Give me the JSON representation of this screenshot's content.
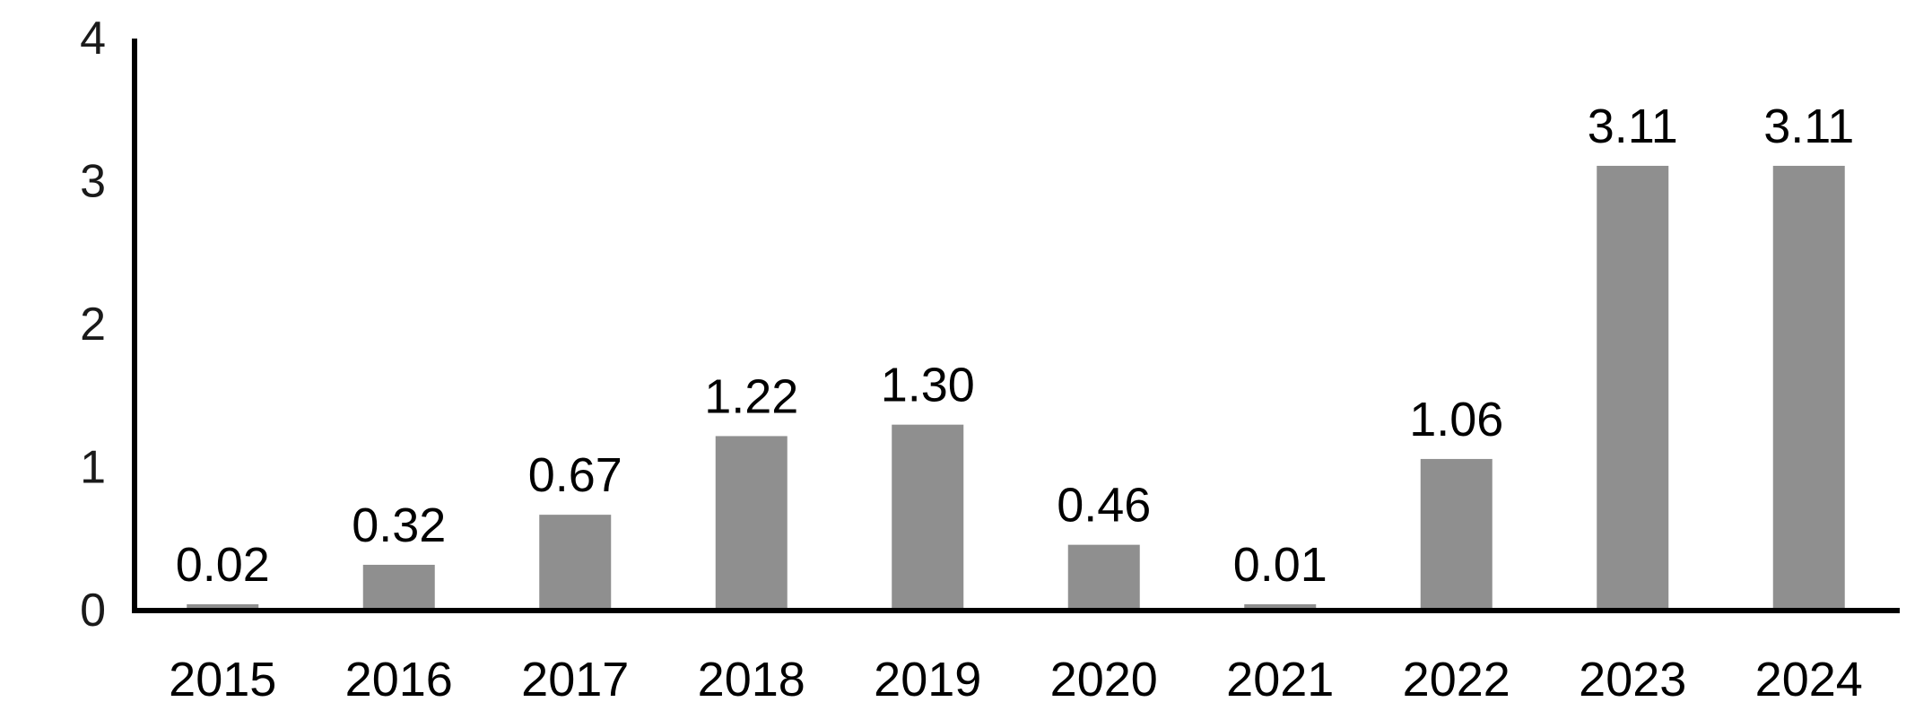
{
  "chart_data": {
    "type": "bar",
    "title": "",
    "xlabel": "",
    "ylabel": "",
    "categories": [
      "2015",
      "2016",
      "2017",
      "2018",
      "2019",
      "2020",
      "2021",
      "2022",
      "2023",
      "2024"
    ],
    "values": [
      0.02,
      0.32,
      0.67,
      1.22,
      1.3,
      0.46,
      0.01,
      1.06,
      3.11,
      3.11
    ],
    "data_labels": [
      "0.02",
      "0.32",
      "0.67",
      "1.22",
      "1.30",
      "0.46",
      "0.01",
      "1.06",
      "3.11",
      "3.11"
    ],
    "ylim": [
      0,
      4
    ],
    "yticks": [
      "0",
      "1",
      "2",
      "3",
      "4"
    ],
    "grid": false,
    "legend": "none",
    "bar_color": "#8f8f8f",
    "axis_color": "#000000"
  }
}
